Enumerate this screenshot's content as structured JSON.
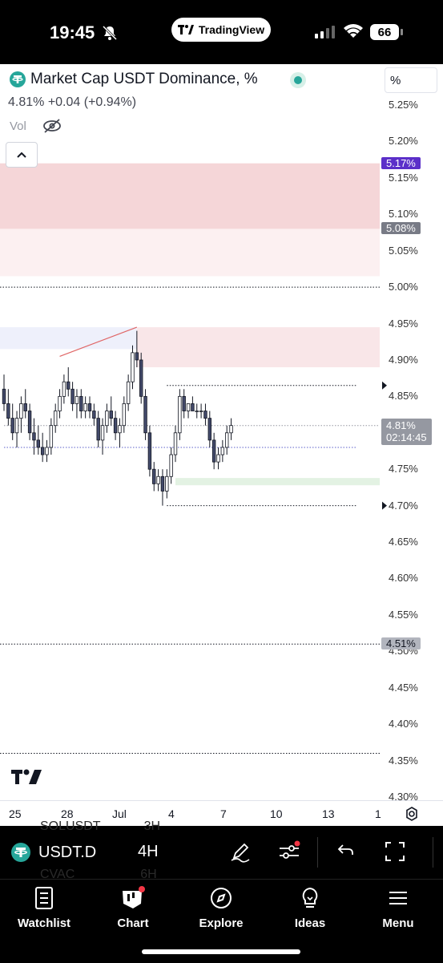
{
  "status_bar": {
    "time": "19:45",
    "app_pill": "TradingView",
    "battery": "66"
  },
  "legend": {
    "title": "Market Cap USDT Dominance, %",
    "values": "4.81%  +0.04  (+0.94%)",
    "vol_label": "Vol"
  },
  "scale_mode": "%",
  "price_axis": {
    "labels": [
      "5.25%",
      "5.20%",
      "5.15%",
      "5.10%",
      "5.05%",
      "5.00%",
      "4.95%",
      "4.90%",
      "4.85%",
      "4.80%",
      "4.75%",
      "4.70%",
      "4.65%",
      "4.60%",
      "4.55%",
      "4.50%",
      "4.45%",
      "4.40%",
      "4.35%",
      "4.30%"
    ],
    "tags": [
      {
        "text": "5.17%",
        "color": "#5b2fc9"
      },
      {
        "text": "5.08%",
        "color": "#787b86"
      },
      {
        "text": "4.51%",
        "color": "#b2b5be",
        "text_color": "#131722"
      }
    ],
    "current_price": "4.81%",
    "countdown": "02:14:45",
    "current_tag_color": "#9598a1"
  },
  "time_axis": {
    "labels": [
      "25",
      "28",
      "Jul",
      "4",
      "7",
      "10",
      "13",
      "1"
    ]
  },
  "toolbar": {
    "symbol": "USDT.D",
    "interval": "4H",
    "ghost_symbol_1": "SOLUSDT",
    "ghost_interval_1": "3H",
    "ghost_symbol_2": "CVAC",
    "ghost_interval_2": "6H"
  },
  "nav": {
    "items": [
      {
        "label": "Watchlist",
        "icon": "watchlist-icon"
      },
      {
        "label": "Chart",
        "icon": "chart-icon"
      },
      {
        "label": "Explore",
        "icon": "compass-icon"
      },
      {
        "label": "Ideas",
        "icon": "lightbulb-icon"
      },
      {
        "label": "Menu",
        "icon": "hamburger-icon"
      }
    ]
  },
  "chart_data": {
    "type": "candlestick",
    "ylim": [
      4.29,
      5.27
    ],
    "price_scale": "percent",
    "candles_ohlc": [
      [
        4.86,
        4.88,
        4.83,
        4.84
      ],
      [
        4.84,
        4.86,
        4.81,
        4.82
      ],
      [
        4.82,
        4.84,
        4.79,
        4.8
      ],
      [
        4.8,
        4.83,
        4.78,
        4.82
      ],
      [
        4.82,
        4.85,
        4.8,
        4.84
      ],
      [
        4.84,
        4.86,
        4.82,
        4.83
      ],
      [
        4.83,
        4.84,
        4.79,
        4.8
      ],
      [
        4.8,
        4.82,
        4.77,
        4.79
      ],
      [
        4.79,
        4.81,
        4.77,
        4.78
      ],
      [
        4.78,
        4.8,
        4.76,
        4.77
      ],
      [
        4.77,
        4.79,
        4.76,
        4.78
      ],
      [
        4.78,
        4.82,
        4.77,
        4.81
      ],
      [
        4.81,
        4.84,
        4.8,
        4.83
      ],
      [
        4.83,
        4.86,
        4.82,
        4.85
      ],
      [
        4.85,
        4.88,
        4.84,
        4.87
      ],
      [
        4.87,
        4.89,
        4.85,
        4.86
      ],
      [
        4.86,
        4.87,
        4.83,
        4.84
      ],
      [
        4.84,
        4.86,
        4.82,
        4.85
      ],
      [
        4.85,
        4.86,
        4.82,
        4.83
      ],
      [
        4.83,
        4.85,
        4.82,
        4.84
      ],
      [
        4.84,
        4.85,
        4.82,
        4.83
      ],
      [
        4.83,
        4.84,
        4.81,
        4.82
      ],
      [
        4.82,
        4.83,
        4.78,
        4.79
      ],
      [
        4.79,
        4.82,
        4.77,
        4.81
      ],
      [
        4.81,
        4.84,
        4.8,
        4.83
      ],
      [
        4.83,
        4.85,
        4.81,
        4.82
      ],
      [
        4.82,
        4.83,
        4.79,
        4.8
      ],
      [
        4.8,
        4.82,
        4.78,
        4.81
      ],
      [
        4.81,
        4.85,
        4.8,
        4.84
      ],
      [
        4.84,
        4.88,
        4.83,
        4.87
      ],
      [
        4.87,
        4.92,
        4.86,
        4.91
      ],
      [
        4.91,
        4.94,
        4.89,
        4.9
      ],
      [
        4.9,
        4.91,
        4.84,
        4.85
      ],
      [
        4.85,
        4.86,
        4.79,
        4.8
      ],
      [
        4.8,
        4.81,
        4.74,
        4.75
      ],
      [
        4.75,
        4.76,
        4.72,
        4.73
      ],
      [
        4.73,
        4.75,
        4.72,
        4.74
      ],
      [
        4.74,
        4.75,
        4.7,
        4.72
      ],
      [
        4.72,
        4.75,
        4.71,
        4.74
      ],
      [
        4.74,
        4.78,
        4.73,
        4.77
      ],
      [
        4.77,
        4.81,
        4.76,
        4.8
      ],
      [
        4.8,
        4.86,
        4.79,
        4.85
      ],
      [
        4.85,
        4.86,
        4.82,
        4.83
      ],
      [
        4.83,
        4.84,
        4.82,
        4.84
      ],
      [
        4.84,
        4.85,
        4.83,
        4.83
      ],
      [
        4.83,
        4.84,
        4.82,
        4.83
      ],
      [
        4.83,
        4.84,
        4.82,
        4.83
      ],
      [
        4.83,
        4.84,
        4.81,
        4.82
      ],
      [
        4.82,
        4.83,
        4.78,
        4.79
      ],
      [
        4.79,
        4.8,
        4.75,
        4.76
      ],
      [
        4.76,
        4.78,
        4.75,
        4.77
      ],
      [
        4.77,
        4.79,
        4.76,
        4.78
      ],
      [
        4.78,
        4.81,
        4.77,
        4.8
      ],
      [
        4.8,
        4.82,
        4.79,
        4.81
      ]
    ],
    "horizontal_lines": [
      5.0,
      4.51,
      4.36
    ],
    "dotted_levels": [
      {
        "price": 4.865,
        "from_index": 38
      },
      {
        "price": 4.81,
        "from_index": 0
      },
      {
        "price": 4.78,
        "from_index": 0
      },
      {
        "price": 4.7,
        "from_index": 38
      }
    ],
    "zones": [
      {
        "top": 5.17,
        "bottom": 5.08,
        "color": "#f5d6d8"
      },
      {
        "top": 5.08,
        "bottom": 5.015,
        "color": "#fcf0f1"
      },
      {
        "top": 4.945,
        "bottom": 4.89,
        "color": "#f9e6e8",
        "from_index": 31
      },
      {
        "top": 4.945,
        "bottom": 4.915,
        "color": "#eef0fb",
        "to_index": 31
      },
      {
        "top": 4.738,
        "bottom": 4.728,
        "color": "#e3f2e3",
        "from_index": 40
      }
    ],
    "trendline": {
      "from": [
        13,
        4.905
      ],
      "to": [
        31,
        4.945
      ],
      "color": "#e06666"
    }
  }
}
